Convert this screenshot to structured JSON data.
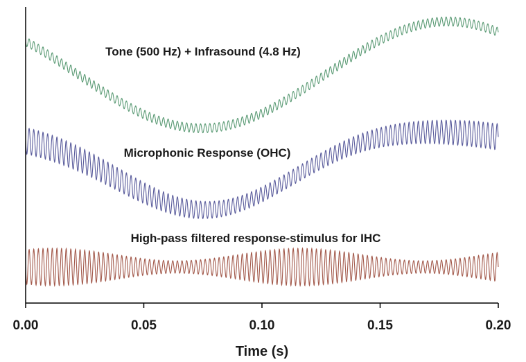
{
  "chart_data": {
    "type": "line",
    "xlabel": "Time (s)",
    "ylabel": "",
    "xlim": [
      0.0,
      0.2
    ],
    "x_ticks": [
      "0.00",
      "0.05",
      "0.10",
      "0.15",
      "0.20"
    ],
    "x_tick_values": [
      0.0,
      0.05,
      0.1,
      0.15,
      0.2
    ],
    "grid": false,
    "series": [
      {
        "name": "Tone (500 Hz) + Infrasound (4.8 Hz)",
        "color": "#5a9a74",
        "carrier_hz": 500,
        "modulator_hz": 4.8
      },
      {
        "name": "Microphonic Response (OHC)",
        "color": "#5a5c9c"
      },
      {
        "name": "High-pass filtered response-stimulus for IHC",
        "color": "#a35a4c"
      }
    ]
  }
}
